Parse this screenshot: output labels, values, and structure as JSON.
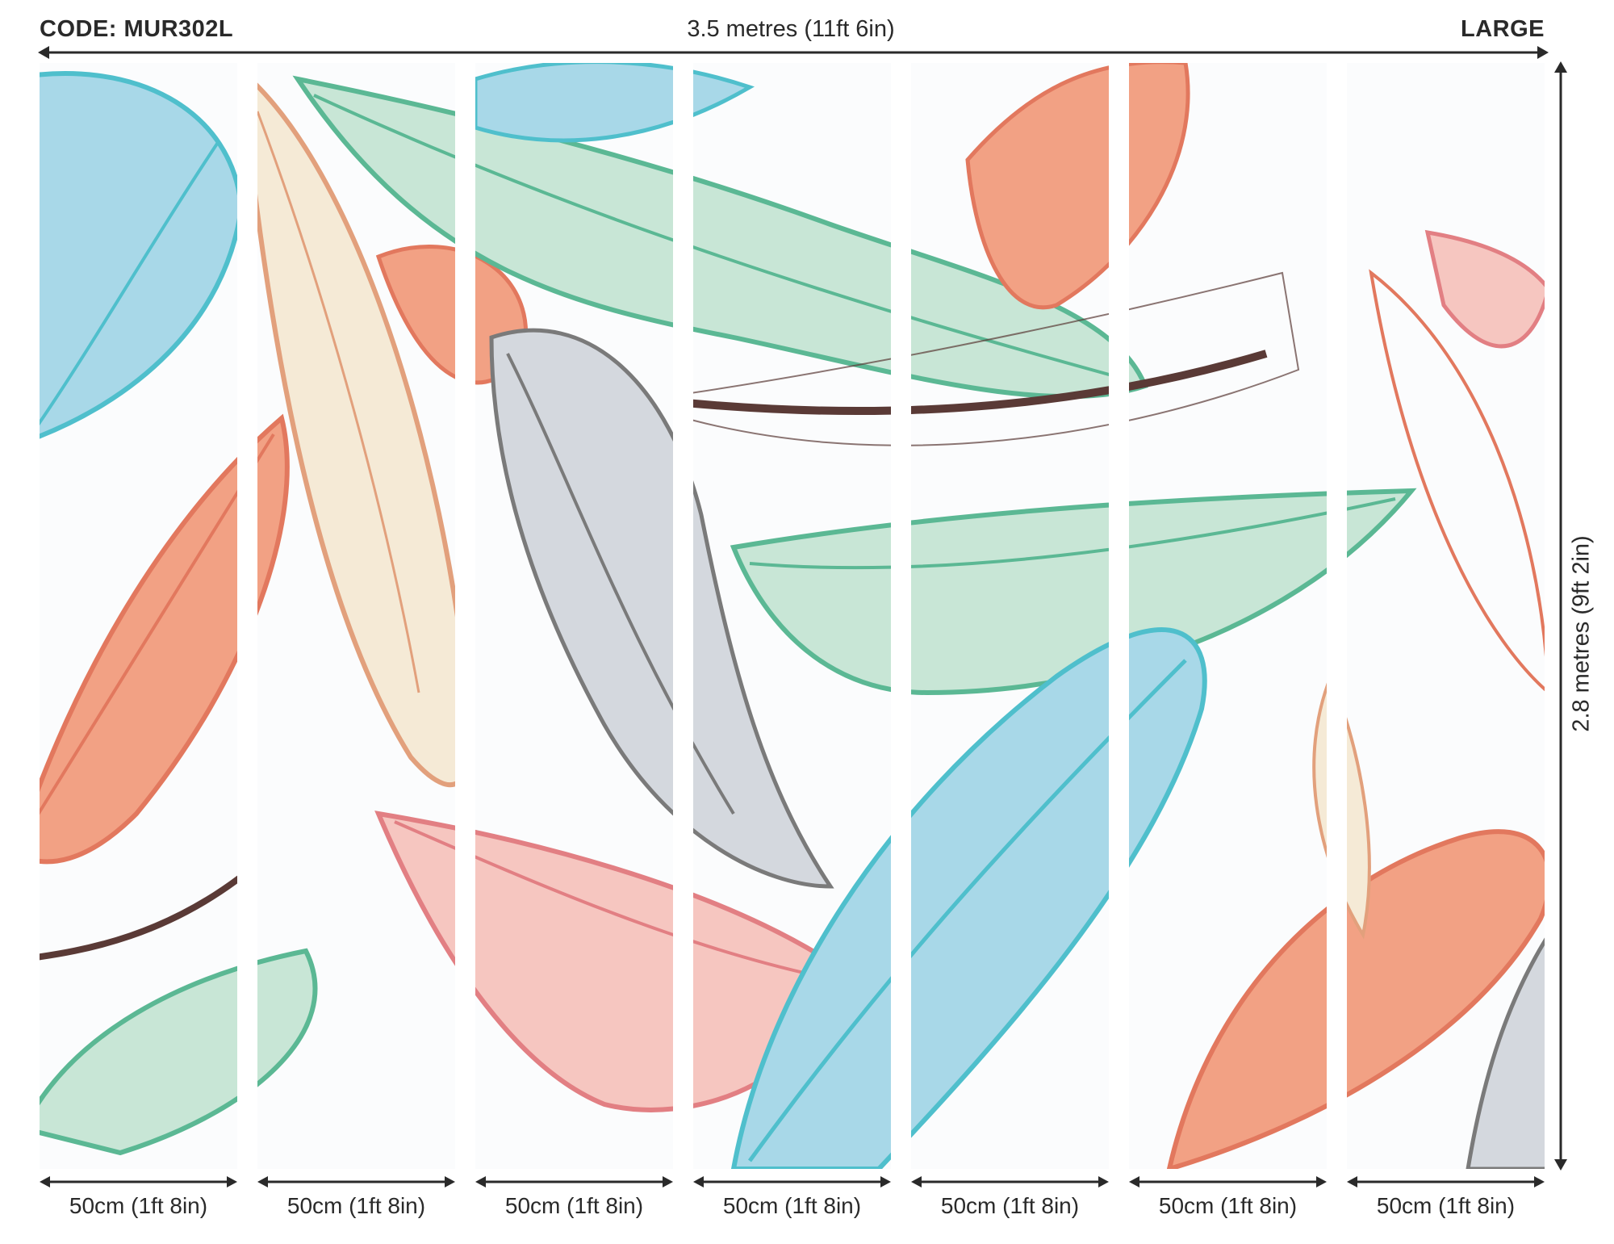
{
  "header": {
    "code": "CODE: MUR302L",
    "width": "3.5 metres (11ft 6in)",
    "size": "LARGE"
  },
  "side": {
    "height": "2.8 metres (9ft 2in)"
  },
  "panels": [
    {
      "label": "50cm (1ft 8in)"
    },
    {
      "label": "50cm (1ft 8in)"
    },
    {
      "label": "50cm (1ft 8in)"
    },
    {
      "label": "50cm (1ft 8in)"
    },
    {
      "label": "50cm (1ft 8in)"
    },
    {
      "label": "50cm (1ft 8in)"
    },
    {
      "label": "50cm (1ft 8in)"
    }
  ],
  "palette": {
    "text": "#2a2a2a",
    "blue": "#a8d8e8",
    "blue_line": "#4fbfcc",
    "mint": "#c8e6d6",
    "mint_line": "#5bb894",
    "coral": "#f2a184",
    "coral_line": "#e2785e",
    "pink": "#f6c6c0",
    "pink_line": "#e27f83",
    "cream": "#f5ead6",
    "grey": "#d4d8de",
    "grey_line": "#7a7a7a",
    "brown": "#5a3a36"
  }
}
